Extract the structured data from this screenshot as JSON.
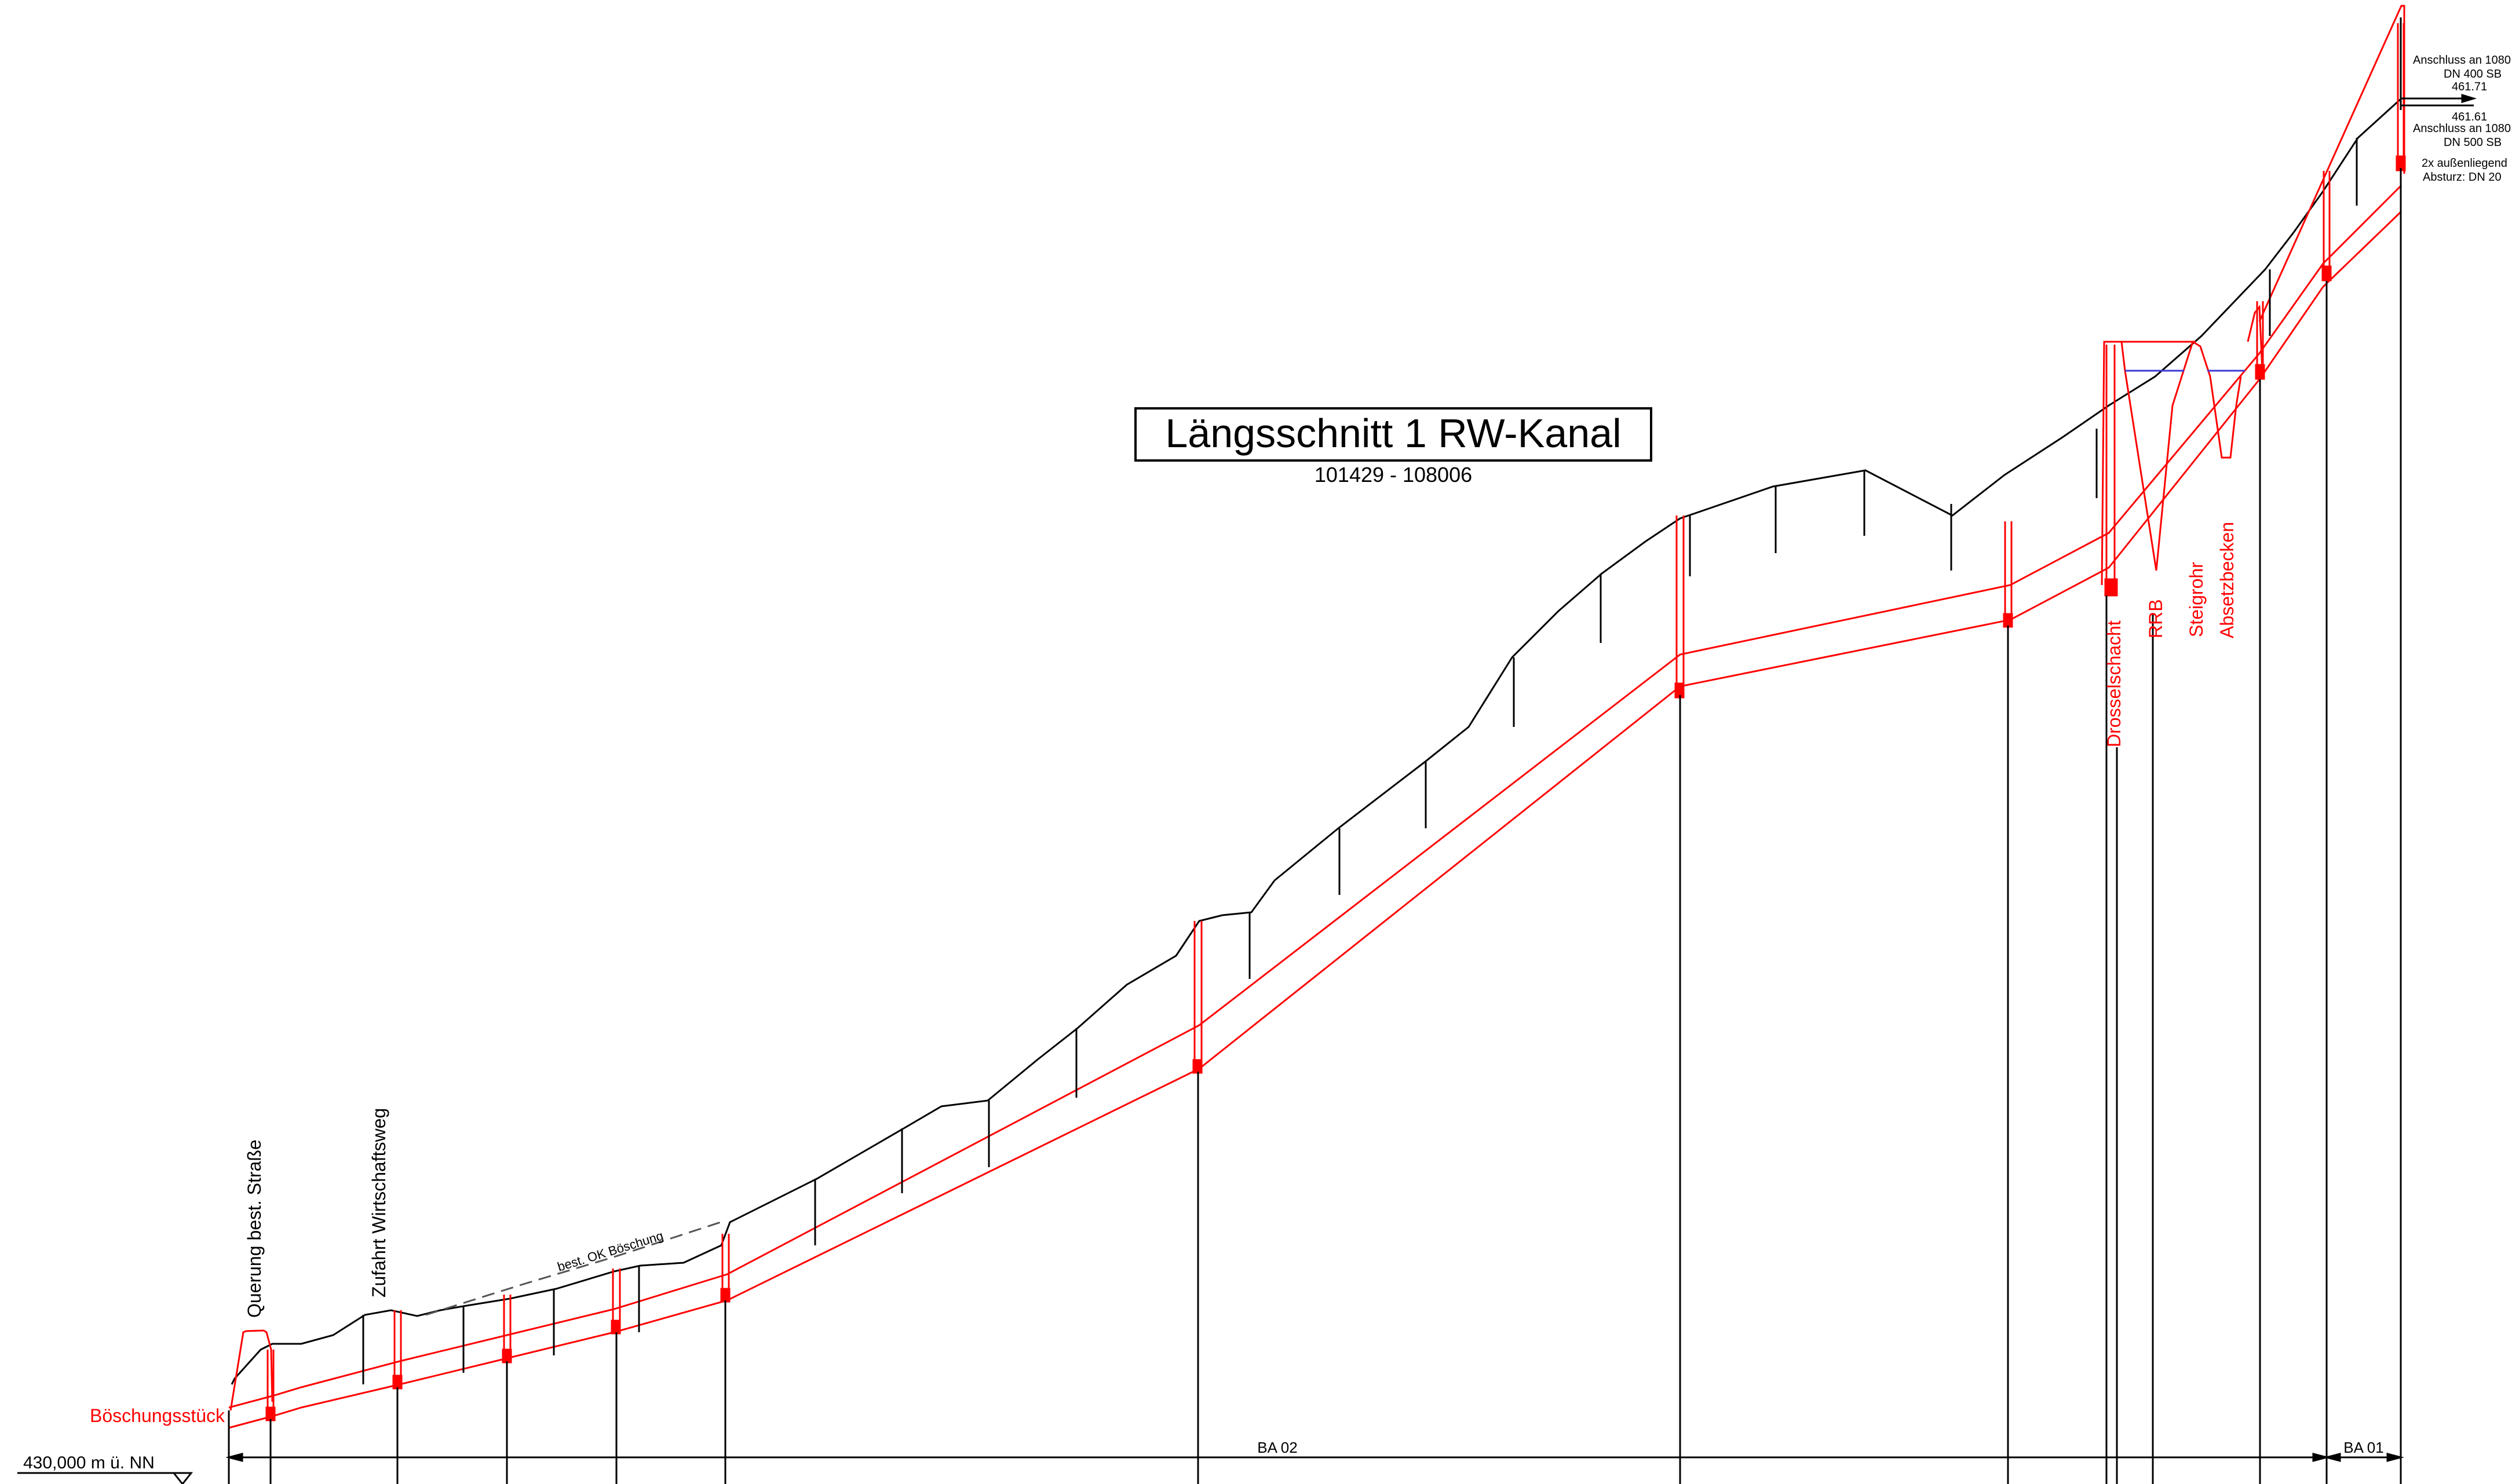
{
  "colors": {
    "terrain": "#000000",
    "pipe": "#ff0000",
    "water": "#3b3bd6",
    "background": "#ffffff"
  },
  "title": {
    "main": "Längsschnitt 1 RW-Kanal",
    "sub": "101429 - 108006"
  },
  "annotations": {
    "querung": "Querung best. Straße",
    "zufahrt": "Zufahrt Wirtschaftsweg",
    "boeschung_ok": "best. OK Böschung",
    "boeschungsstueck": "Böschungsstück",
    "drosselschacht": "Drosselschacht",
    "rrb": "RRB",
    "steigrohr": "Steigrohr",
    "absetzbecken": "Absetzbecken"
  },
  "top_right_notes": {
    "line1a": "Anschluss an 1080",
    "line1b": "DN 400 SB",
    "elev1": "461.71",
    "elev2": "461.61",
    "line2a": "Anschluss an 1080",
    "line2b": "DN 500 SB",
    "line3a": "2x außenliegend",
    "line3b": "Absturz:   DN 20"
  },
  "datum": {
    "label": "430,000 m ü. NN"
  },
  "sections": {
    "ba02": "BA 02",
    "ba01": "BA 01"
  }
}
